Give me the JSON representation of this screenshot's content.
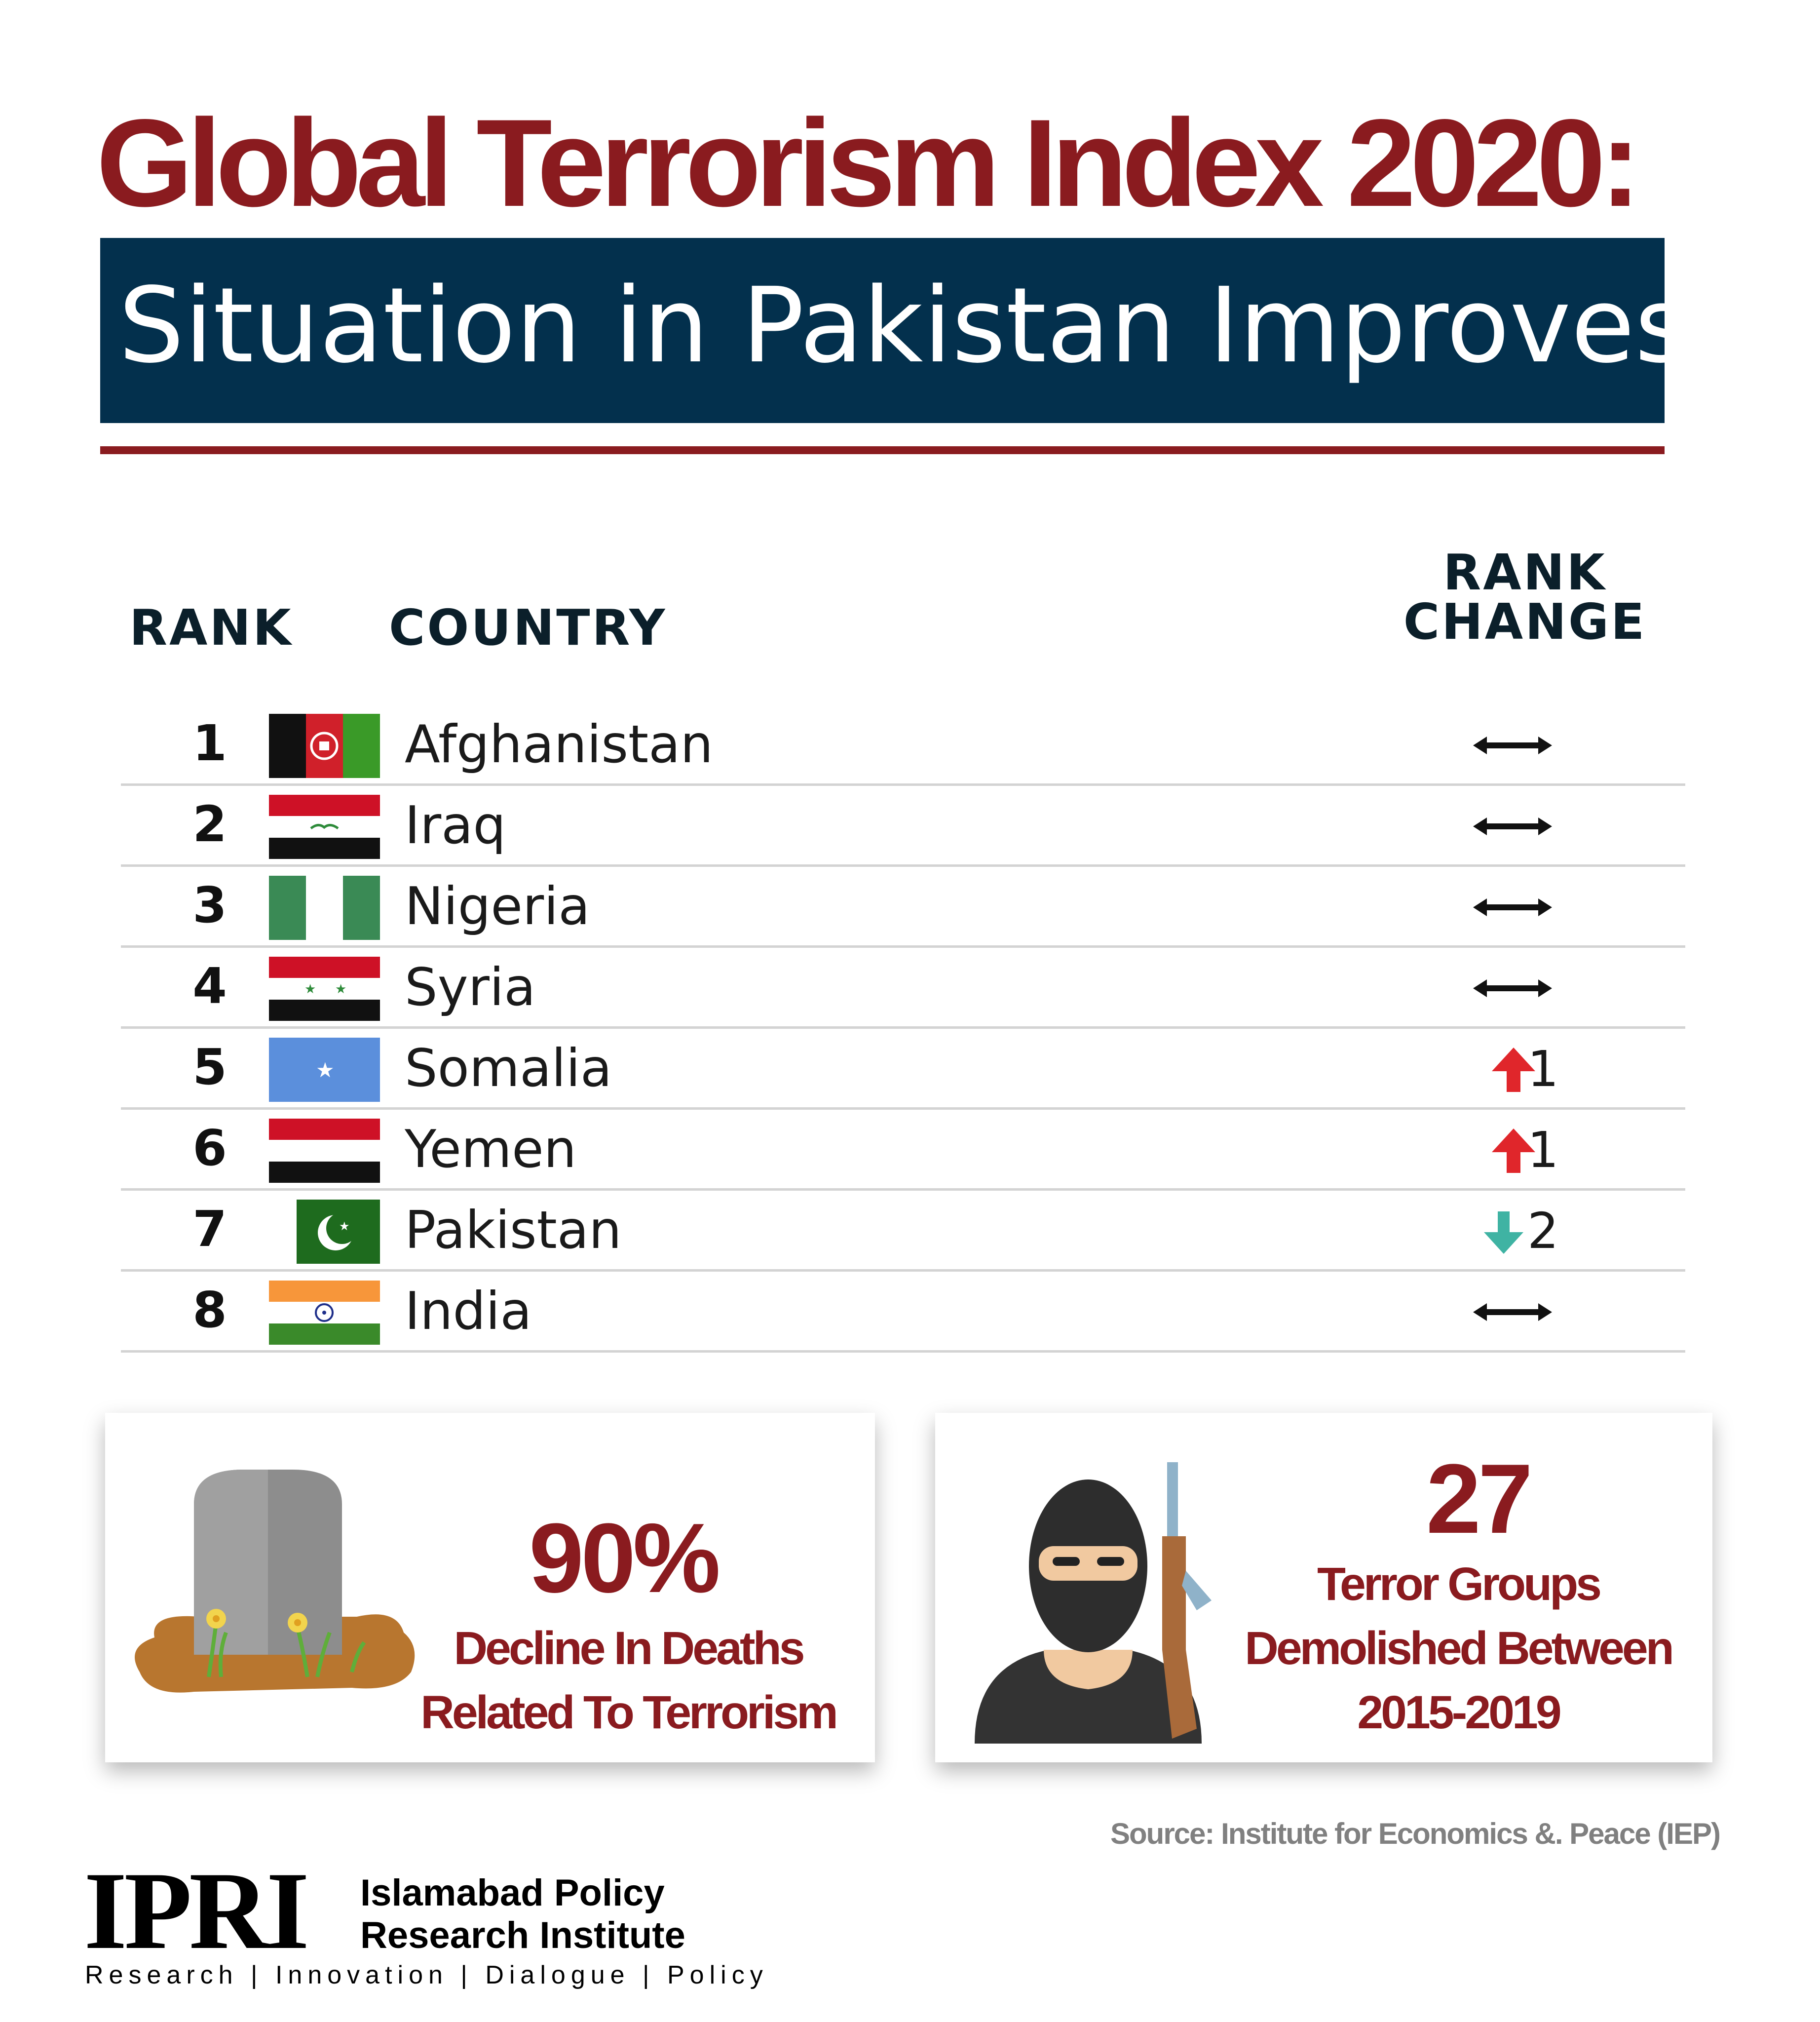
{
  "title": "Global Terrorism Index 2020:",
  "subtitle": "Situation in Pakistan Improves",
  "table": {
    "headers": {
      "rank": "RANK",
      "country": "COUNTRY",
      "change_line1": "RANK",
      "change_line2": "CHANGE"
    },
    "rows": [
      {
        "rank": "1",
        "country": "Afghanistan",
        "flag": "afghanistan-flag-icon",
        "change_icon": "no-change-arrow-icon",
        "change_value": ""
      },
      {
        "rank": "2",
        "country": "Iraq",
        "flag": "iraq-flag-icon",
        "change_icon": "no-change-arrow-icon",
        "change_value": ""
      },
      {
        "rank": "3",
        "country": "Nigeria",
        "flag": "nigeria-flag-icon",
        "change_icon": "no-change-arrow-icon",
        "change_value": ""
      },
      {
        "rank": "4",
        "country": "Syria",
        "flag": "syria-flag-icon",
        "change_icon": "no-change-arrow-icon",
        "change_value": ""
      },
      {
        "rank": "5",
        "country": "Somalia",
        "flag": "somalia-flag-icon",
        "change_icon": "up-arrow-icon",
        "change_value": "1"
      },
      {
        "rank": "6",
        "country": "Yemen",
        "flag": "yemen-flag-icon",
        "change_icon": "up-arrow-icon",
        "change_value": "1"
      },
      {
        "rank": "7",
        "country": "Pakistan",
        "flag": "pakistan-flag-icon",
        "change_icon": "down-arrow-icon",
        "change_value": "2"
      },
      {
        "rank": "8",
        "country": "India",
        "flag": "india-flag-icon",
        "change_icon": "no-change-arrow-icon",
        "change_value": ""
      }
    ]
  },
  "stats": {
    "deaths": {
      "value": "90%",
      "line1": "Decline In Deaths",
      "line2": "Related To Terrorism",
      "icon": "gravestone-icon"
    },
    "groups": {
      "value": "27",
      "line1": "Terror Groups",
      "line2": "Demolished Between",
      "line3": "2015-2019",
      "icon": "masked-militant-icon"
    }
  },
  "source": "Source: Institute for Economics &. Peace (IEP)",
  "logo": {
    "mark": "IPRI",
    "name_line1": "Islamabad Policy",
    "name_line2": "Research Institute",
    "tagline": "Research | Innovation | Dialogue | Policy"
  },
  "colors": {
    "brand_red": "#8a1b1f",
    "navy": "#03304d",
    "up_arrow": "#e0262b",
    "down_arrow": "#3fb3a3"
  }
}
